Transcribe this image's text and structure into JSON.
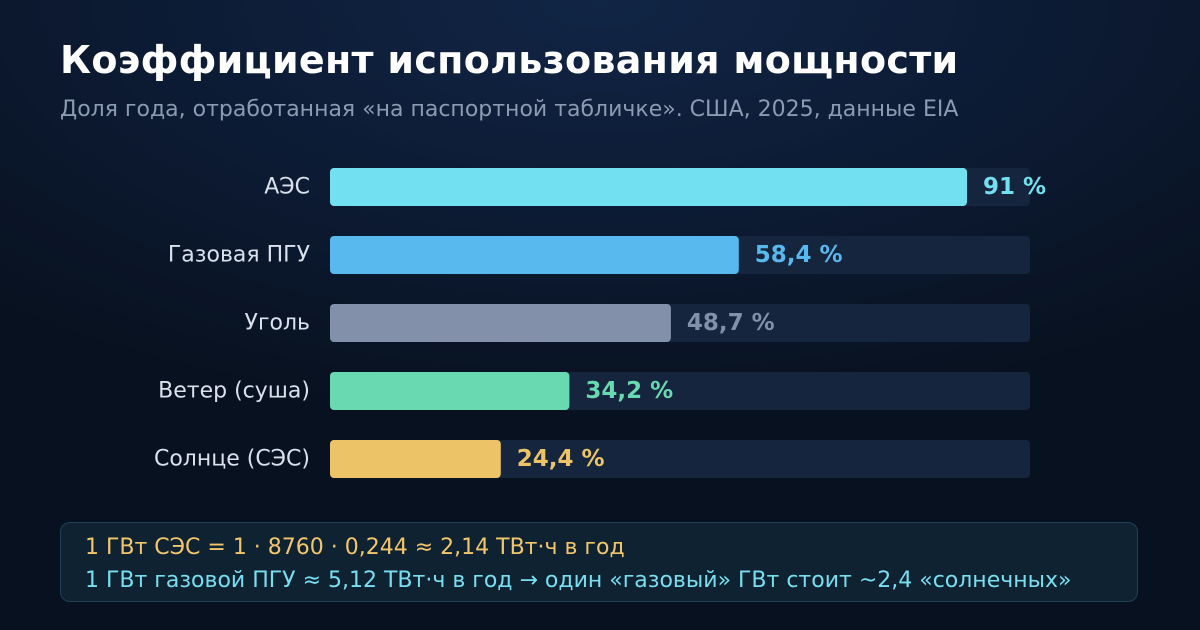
{
  "title": "Коэффициент использования мощности",
  "subtitle": "Доля года, отработанная «на паспортной табличке». США, 2025, данные EIA",
  "chart_data": {
    "type": "bar",
    "orientation": "horizontal",
    "categories": [
      "АЭС",
      "Газовая ПГУ",
      "Уголь",
      "Ветер (суша)",
      "Солнце (СЭС)"
    ],
    "values": [
      91,
      58.4,
      48.7,
      34.2,
      24.4
    ],
    "value_labels": [
      "91 %",
      "58,4 %",
      "48,7 %",
      "34,2 %",
      "24,4 %"
    ],
    "colors": [
      "#72e0f1",
      "#58b9ef",
      "#8291a9",
      "#68d9b0",
      "#ecc467"
    ],
    "track_color": "#15253d",
    "xlim": [
      0,
      100
    ],
    "unit": "%",
    "grid": false,
    "legend": "none"
  },
  "note": {
    "line1": "1 ГВт СЭС = 1 · 8760 · 0,244 ≈ 2,14 ТВт·ч в год",
    "line2": "1 ГВт газовой ПГУ ≈ 5,12 ТВт·ч в год → один «газовый» ГВт стоит ~2,4 «солнечных»"
  }
}
